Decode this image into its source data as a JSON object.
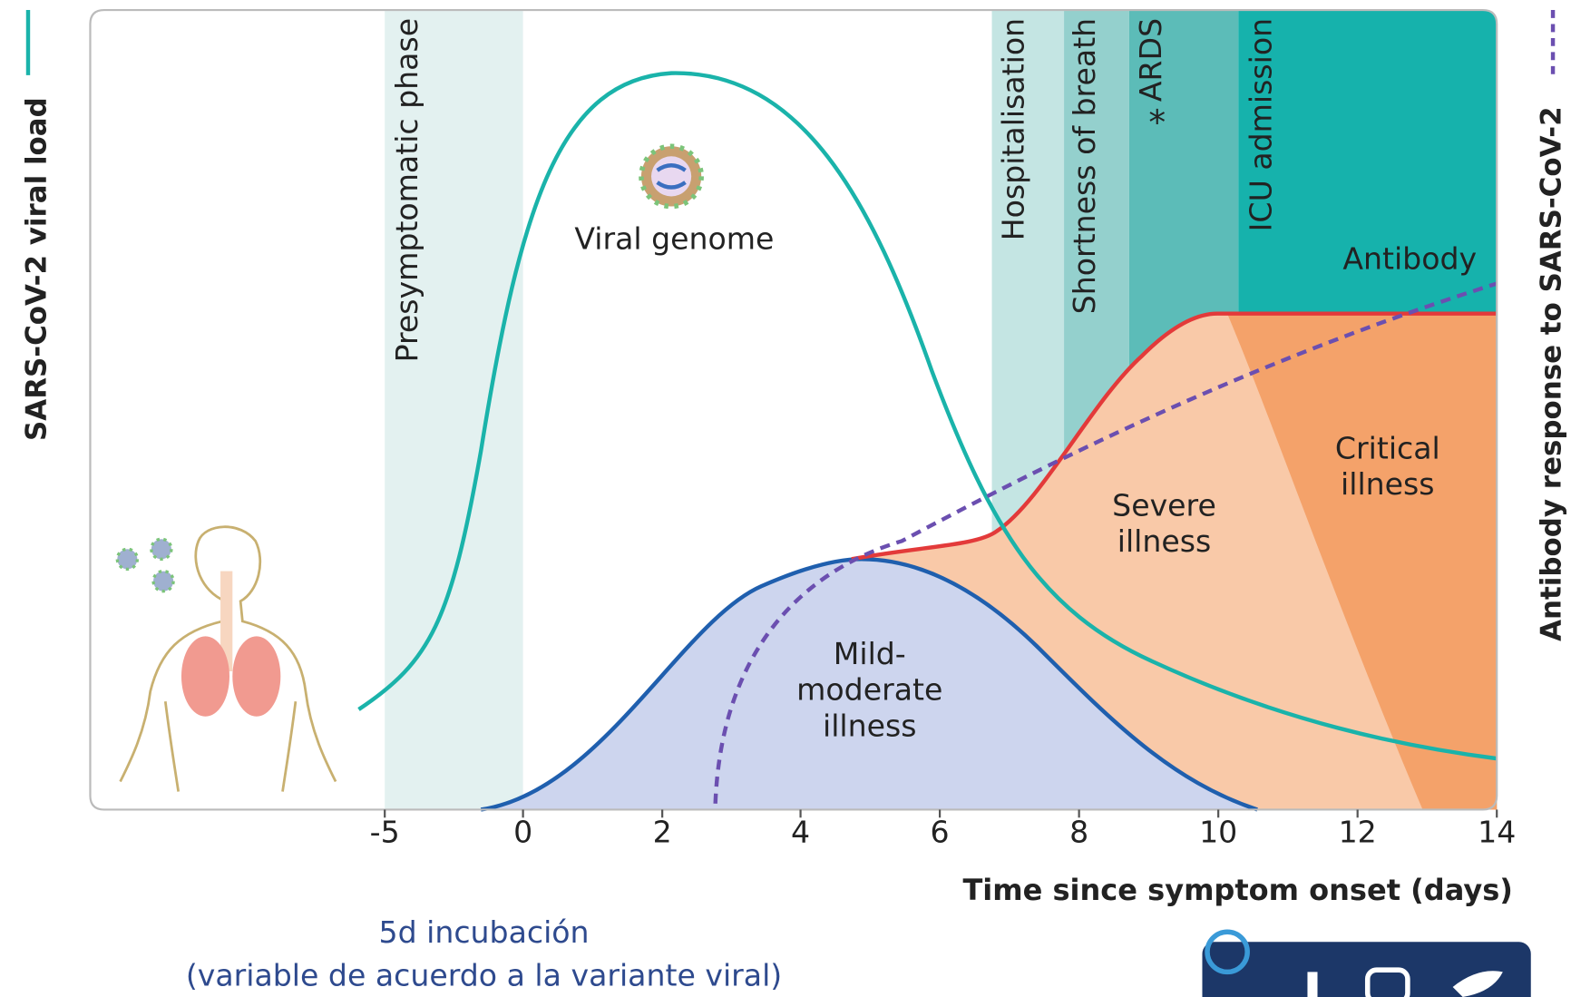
{
  "axes": {
    "y_left_label": "SARS-CoV-2 viral load",
    "y_right_label": "Antibody response to SARS-CoV-2",
    "x_label": "Time since symptom onset (days)",
    "x_ticks": [
      "-5",
      "0",
      "2",
      "4",
      "6",
      "8",
      "10",
      "12",
      "14"
    ]
  },
  "phases": [
    "Presymptomatic phase",
    "Hospitalisation",
    "Shortness of breath",
    "ARDS",
    "ICU admission"
  ],
  "asterisk": "*",
  "curve_labels": {
    "viral_genome": "Viral genome",
    "antibody": "Antibody",
    "mild": [
      "Mild-",
      "moderate",
      "illness"
    ],
    "severe": [
      "Severe",
      "illness"
    ],
    "critical": [
      "Critical",
      "illness"
    ]
  },
  "footnote": [
    "5d incubación",
    "(variable de acuerdo a la variante viral)"
  ]
}
